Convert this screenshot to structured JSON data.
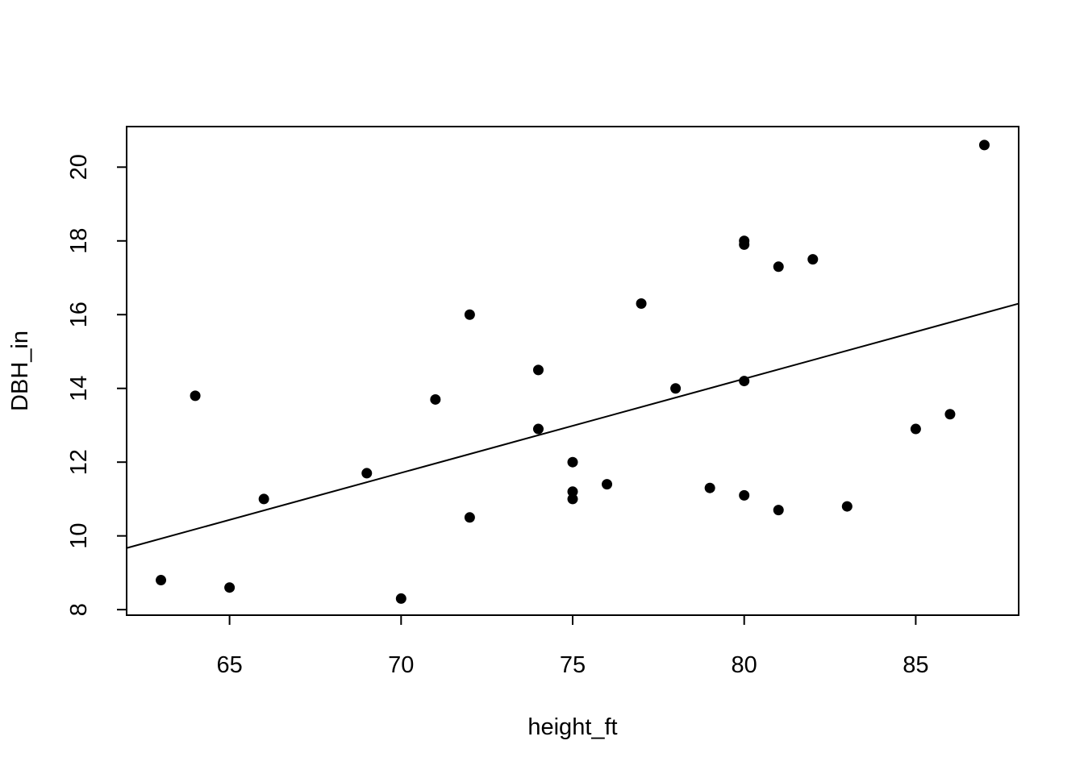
{
  "chart_data": {
    "type": "scatter",
    "title": "",
    "xlabel": "height_ft",
    "ylabel": "DBH_in",
    "xlim": [
      62,
      88
    ],
    "ylim": [
      7.85,
      21.1
    ],
    "x_ticks": [
      65,
      70,
      75,
      80,
      85
    ],
    "y_ticks": [
      8,
      10,
      12,
      14,
      16,
      18,
      20
    ],
    "grid": false,
    "legend": "none",
    "point_color": "#000000",
    "line_color": "#000000",
    "points": [
      {
        "x": 63,
        "y": 8.8
      },
      {
        "x": 64,
        "y": 13.8
      },
      {
        "x": 65,
        "y": 8.6
      },
      {
        "x": 66,
        "y": 11.0
      },
      {
        "x": 69,
        "y": 11.7
      },
      {
        "x": 70,
        "y": 8.3
      },
      {
        "x": 71,
        "y": 13.7
      },
      {
        "x": 72,
        "y": 16.0
      },
      {
        "x": 72,
        "y": 10.5
      },
      {
        "x": 74,
        "y": 14.5
      },
      {
        "x": 74,
        "y": 12.9
      },
      {
        "x": 75,
        "y": 12.0
      },
      {
        "x": 75,
        "y": 11.2
      },
      {
        "x": 75,
        "y": 11.0
      },
      {
        "x": 76,
        "y": 11.4
      },
      {
        "x": 77,
        "y": 16.3
      },
      {
        "x": 78,
        "y": 14.0
      },
      {
        "x": 79,
        "y": 11.3
      },
      {
        "x": 80,
        "y": 18.0
      },
      {
        "x": 80,
        "y": 17.9
      },
      {
        "x": 80,
        "y": 14.2
      },
      {
        "x": 80,
        "y": 11.1
      },
      {
        "x": 81,
        "y": 17.3
      },
      {
        "x": 81,
        "y": 10.7
      },
      {
        "x": 82,
        "y": 17.5
      },
      {
        "x": 83,
        "y": 10.8
      },
      {
        "x": 85,
        "y": 12.9
      },
      {
        "x": 86,
        "y": 13.3
      },
      {
        "x": 87,
        "y": 20.6
      }
    ],
    "fit_line": {
      "x": [
        62,
        88
      ],
      "y": [
        9.67,
        16.3
      ]
    }
  }
}
